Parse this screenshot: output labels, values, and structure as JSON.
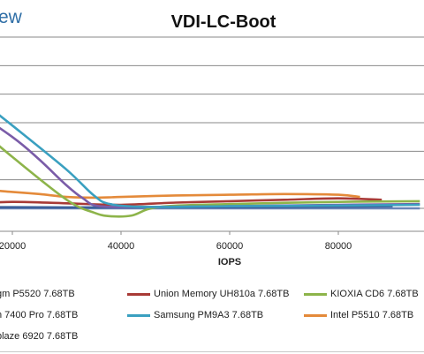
{
  "watermark": "ew",
  "chart_data": {
    "type": "line",
    "title": "VDI-LC-Boot",
    "xlabel": "IOPS",
    "ylabel": "",
    "xlim": [
      -10000,
      95000
    ],
    "ylim": [
      0,
      12
    ],
    "xticks": [
      20000,
      40000,
      60000,
      80000
    ],
    "xtick_labels": [
      "20000",
      "40000",
      "60000",
      "80000"
    ],
    "grid": true,
    "legend_position": "bottom",
    "series": [
      {
        "name": "gm P5520 7.68TB",
        "color": "#3b5f9a",
        "x": [
          0,
          10000,
          20000,
          30000,
          40000,
          50000,
          60000,
          70000,
          80000,
          90000
        ],
        "y": [
          0.08,
          0.08,
          0.08,
          0.07,
          0.07,
          0.08,
          0.08,
          0.1,
          0.12,
          0.15
        ]
      },
      {
        "name": "Union Memory UH810a 7.68TB",
        "color": "#a83a36",
        "x": [
          0,
          10000,
          20000,
          30000,
          40000,
          50000,
          60000,
          70000,
          80000,
          88000
        ],
        "y": [
          0.2,
          0.3,
          0.45,
          0.35,
          0.25,
          0.4,
          0.5,
          0.6,
          0.7,
          0.6
        ]
      },
      {
        "name": "KIOXIA CD6 7.68TB",
        "color": "#8db44a",
        "x": [
          -1500,
          -800,
          -300,
          0,
          1500,
          5000,
          10000,
          20000,
          30000,
          35000,
          38000,
          42000,
          47000,
          60000,
          80000,
          95000
        ],
        "y": [
          0.3,
          1.5,
          5.5,
          7.8,
          8.4,
          8.1,
          6.8,
          3.6,
          0.6,
          -0.3,
          -0.55,
          -0.5,
          0.1,
          0.3,
          0.45,
          0.5
        ]
      },
      {
        "name": "n 7400 Pro 7.68TB",
        "color": "#7a5ca8",
        "x": [
          -10000,
          -5000,
          0,
          10000,
          20000,
          25000,
          30000,
          33000,
          36000,
          45000,
          60000,
          80000,
          95000
        ],
        "y": [
          11.2,
          10.9,
          10.3,
          7.6,
          5.0,
          3.4,
          1.6,
          0.7,
          0.15,
          0.1,
          0.15,
          0.25,
          0.3
        ]
      },
      {
        "name": "Samsung PM9A3 7.68TB",
        "color": "#3aa0c0",
        "x": [
          -10000,
          -3000,
          0,
          10000,
          20000,
          30000,
          35000,
          38000,
          45000,
          60000,
          80000,
          95000
        ],
        "y": [
          12.6,
          12.1,
          11.7,
          8.8,
          5.8,
          2.7,
          0.9,
          0.3,
          0.1,
          0.15,
          0.2,
          0.25
        ]
      },
      {
        "name": "Intel P5510 7.68TB",
        "color": "#e48a3a",
        "x": [
          0,
          5000,
          10000,
          15000,
          20000,
          25000,
          30000,
          35000,
          40000,
          50000,
          60000,
          70000,
          80000,
          84000
        ],
        "y": [
          0.1,
          0.45,
          1.0,
          1.25,
          1.15,
          1.0,
          0.8,
          0.75,
          0.8,
          0.9,
          0.95,
          1.0,
          0.95,
          0.8
        ]
      },
      {
        "name": "blaze 6920 7.68TB",
        "color": "#6b85b8",
        "x": [
          -10000,
          0,
          20000,
          40000,
          60000,
          80000,
          95000
        ],
        "y": [
          0.0,
          0.0,
          0.0,
          0.0,
          0.0,
          0.0,
          0.0
        ]
      }
    ]
  }
}
